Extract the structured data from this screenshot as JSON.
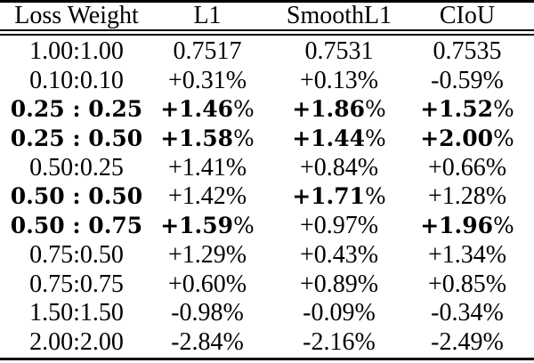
{
  "page": {
    "background": "#ffffff",
    "text_color": "#000000",
    "rule_color": "#000000"
  },
  "chart_data": {
    "type": "table",
    "title": "",
    "columns": [
      "Loss Weight",
      "L1",
      "SmoothL1",
      "CIoU"
    ],
    "rows": [
      {
        "cells": [
          {
            "text": "1.00:1.00",
            "bold": false
          },
          {
            "text": "0.7517",
            "bold": false
          },
          {
            "text": "0.7531",
            "bold": false
          },
          {
            "text": "0.7535",
            "bold": false
          }
        ]
      },
      {
        "cells": [
          {
            "text": "0.10:0.10",
            "bold": false
          },
          {
            "text": "+0.31%",
            "bold": false
          },
          {
            "text": "+0.13%",
            "bold": false
          },
          {
            "text": "-0.59%",
            "bold": false
          }
        ]
      },
      {
        "cells": [
          {
            "text": "0.25 : 0.25",
            "bold": true
          },
          {
            "text": "+1.46%",
            "bold": true
          },
          {
            "text": "+1.86%",
            "bold": true
          },
          {
            "text": "+1.52%",
            "bold": true
          }
        ]
      },
      {
        "cells": [
          {
            "text": "0.25 : 0.50",
            "bold": true
          },
          {
            "text": "+1.58%",
            "bold": true
          },
          {
            "text": "+1.44%",
            "bold": true
          },
          {
            "text": "+2.00%",
            "bold": true
          }
        ]
      },
      {
        "cells": [
          {
            "text": "0.50:0.25",
            "bold": false
          },
          {
            "text": "+1.41%",
            "bold": false
          },
          {
            "text": "+0.84%",
            "bold": false
          },
          {
            "text": "+0.66%",
            "bold": false
          }
        ]
      },
      {
        "cells": [
          {
            "text": "0.50 : 0.50",
            "bold": true
          },
          {
            "text": "+1.42%",
            "bold": false
          },
          {
            "text": "+1.71%",
            "bold": true
          },
          {
            "text": "+1.28%",
            "bold": false
          }
        ]
      },
      {
        "cells": [
          {
            "text": "0.50 : 0.75",
            "bold": true
          },
          {
            "text": "+1.59%",
            "bold": true
          },
          {
            "text": "+0.97%",
            "bold": false
          },
          {
            "text": "+1.96%",
            "bold": true
          }
        ]
      },
      {
        "cells": [
          {
            "text": "0.75:0.50",
            "bold": false
          },
          {
            "text": "+1.29%",
            "bold": false
          },
          {
            "text": "+0.43%",
            "bold": false
          },
          {
            "text": "+1.34%",
            "bold": false
          }
        ]
      },
      {
        "cells": [
          {
            "text": "0.75:0.75",
            "bold": false
          },
          {
            "text": "+0.60%",
            "bold": false
          },
          {
            "text": "+0.89%",
            "bold": false
          },
          {
            "text": "+0.85%",
            "bold": false
          }
        ]
      },
      {
        "cells": [
          {
            "text": "1.50:1.50",
            "bold": false
          },
          {
            "text": "-0.98%",
            "bold": false
          },
          {
            "text": "-0.09%",
            "bold": false
          },
          {
            "text": "-0.34%",
            "bold": false
          }
        ]
      },
      {
        "cells": [
          {
            "text": "2.00:2.00",
            "bold": false
          },
          {
            "text": "-2.84%",
            "bold": false
          },
          {
            "text": "-2.16%",
            "bold": false
          },
          {
            "text": "-2.49%",
            "bold": false
          }
        ]
      }
    ]
  }
}
